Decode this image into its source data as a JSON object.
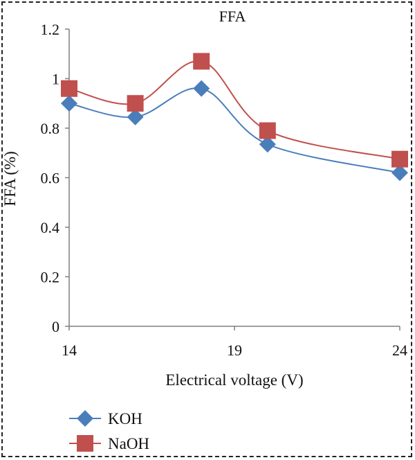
{
  "chart_data": {
    "type": "line",
    "title": "FFA",
    "xlabel": "Electrical voltage (V)",
    "ylabel": "FFA (%)",
    "x": [
      14,
      16,
      18,
      20,
      24
    ],
    "xticks": [
      14,
      19,
      24
    ],
    "xlim": [
      14,
      24
    ],
    "ylim": [
      0,
      1.2
    ],
    "yticks": [
      "0",
      "0.2",
      "0.4",
      "0.6",
      "0.8",
      "1",
      "1.2"
    ],
    "grid": false,
    "legend_position": "bottom-left",
    "series": [
      {
        "name": "KOH",
        "marker": "diamond",
        "color": "#4a7ebb",
        "values": [
          0.9,
          0.845,
          0.96,
          0.735,
          0.62
        ]
      },
      {
        "name": "NaOH",
        "marker": "square",
        "color": "#c0504d",
        "values": [
          0.96,
          0.9,
          1.07,
          0.79,
          0.675
        ]
      }
    ]
  }
}
